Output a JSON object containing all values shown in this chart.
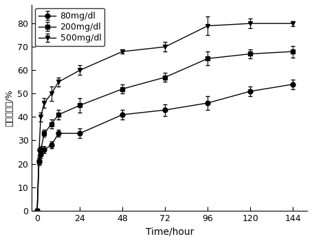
{
  "series": [
    {
      "label": "80mg/dl",
      "marker": "o",
      "x": [
        0,
        1,
        2,
        4,
        8,
        12,
        24,
        48,
        72,
        96,
        120,
        144
      ],
      "y": [
        0,
        21,
        24,
        26,
        28,
        33,
        33,
        41,
        43,
        46,
        51,
        54
      ],
      "yerr": [
        0,
        1.5,
        1.5,
        1.5,
        1.5,
        1.5,
        2.0,
        2.0,
        2.5,
        3.0,
        2.0,
        2.0
      ]
    },
    {
      "label": "200mg/dl",
      "marker": "s",
      "x": [
        0,
        1,
        2,
        4,
        8,
        12,
        24,
        48,
        72,
        96,
        120,
        144
      ],
      "y": [
        0,
        21,
        26,
        33,
        37,
        41,
        45,
        52,
        57,
        65,
        67,
        68
      ],
      "yerr": [
        0,
        1.5,
        1.5,
        1.5,
        2.0,
        2.0,
        3.0,
        2.0,
        2.0,
        3.0,
        2.0,
        2.5
      ]
    },
    {
      "label": "500mg/dl",
      "marker": "v",
      "x": [
        0,
        1,
        2,
        4,
        8,
        12,
        24,
        48,
        72,
        96,
        120,
        144
      ],
      "y": [
        0,
        25,
        40,
        46,
        50,
        55,
        60,
        68,
        70,
        79,
        80,
        80
      ],
      "yerr": [
        0,
        1.5,
        2.0,
        2.0,
        3.0,
        2.0,
        2.0,
        1.0,
        2.0,
        4.0,
        2.0,
        1.0
      ]
    }
  ],
  "xlabel": "Time/hour",
  "ylabel": "累积释放率/%",
  "xlim": [
    -3,
    152
  ],
  "ylim": [
    0,
    88
  ],
  "xticks": [
    0,
    24,
    48,
    72,
    96,
    120,
    144
  ],
  "yticks": [
    0,
    10,
    20,
    30,
    40,
    50,
    60,
    70,
    80
  ],
  "legend_loc": "upper left",
  "background_color": "#ffffff",
  "line_color": "#000000",
  "markersize": 5,
  "linewidth": 1.0,
  "xlabel_fontsize": 10,
  "ylabel_fontsize": 9,
  "tick_fontsize": 9,
  "legend_fontsize": 9
}
